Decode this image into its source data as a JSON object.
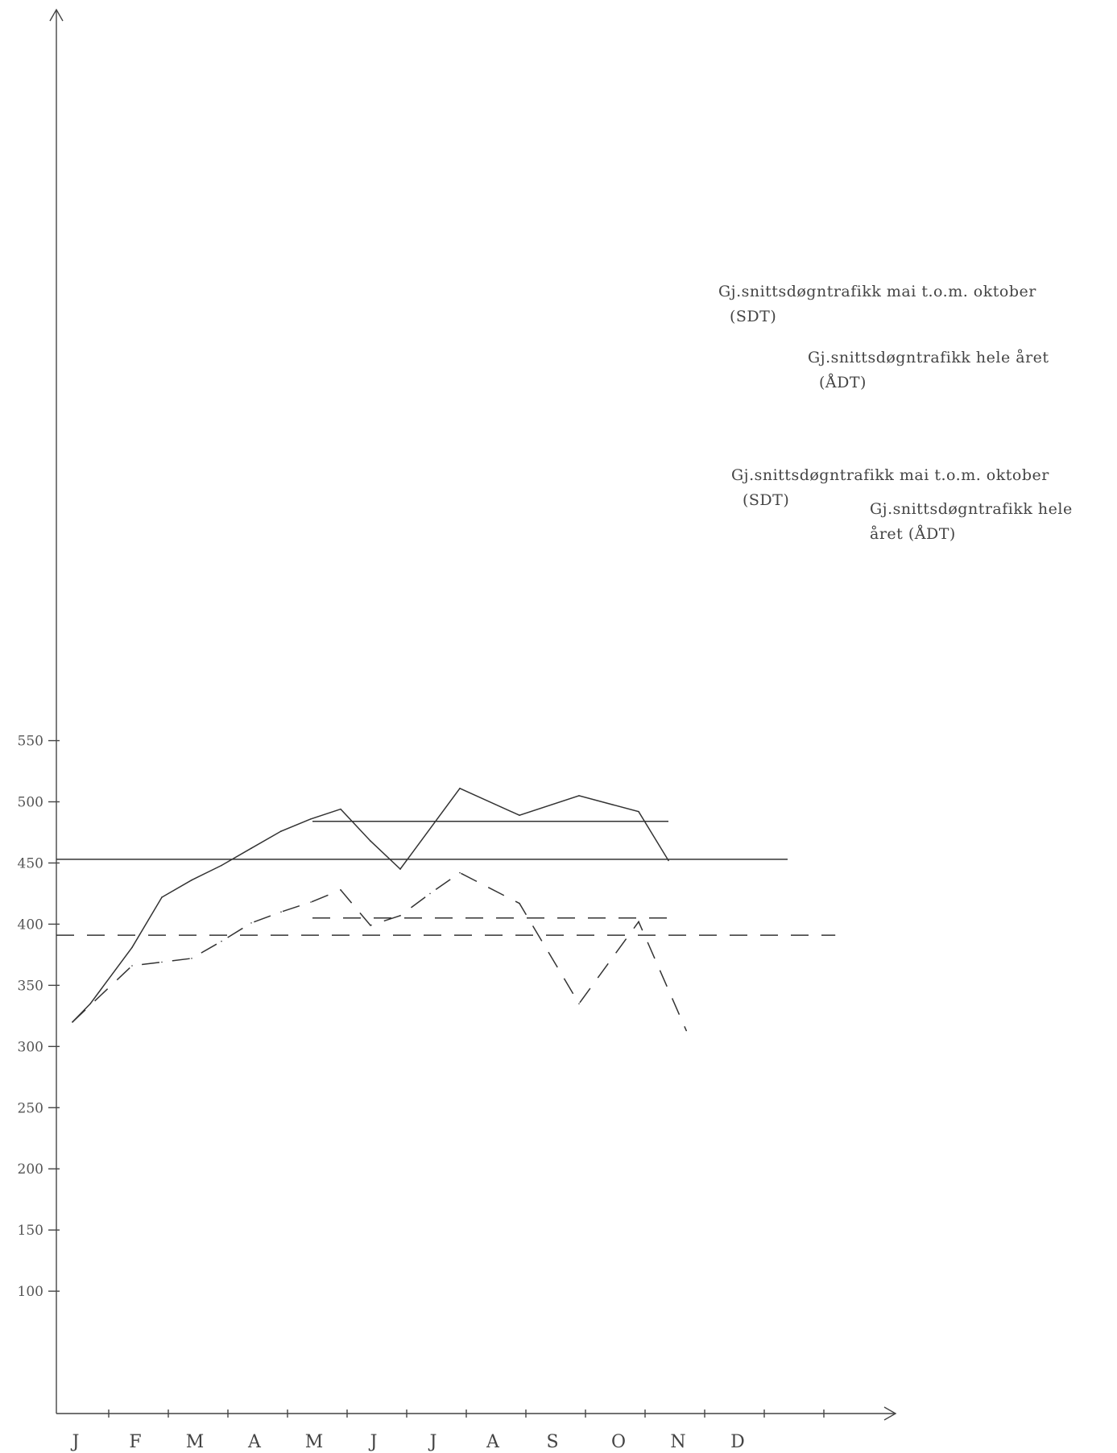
{
  "chart_data": {
    "type": "line",
    "categories": [
      "J",
      "F",
      "M",
      "A",
      "M",
      "J",
      "J",
      "A",
      "S",
      "O",
      "N",
      "D"
    ],
    "y_ticks": [
      "550",
      "500",
      "450",
      "400",
      "350",
      "300",
      "250",
      "200",
      "150",
      "100"
    ],
    "ylim": [
      0,
      600
    ],
    "grid": false,
    "series": [
      {
        "style": "solid",
        "points": [
          [
            0.0,
            320
          ],
          [
            0.3,
            335
          ],
          [
            1.0,
            381
          ],
          [
            1.5,
            422
          ],
          [
            2.0,
            436
          ],
          [
            2.5,
            448
          ],
          [
            3.0,
            462
          ],
          [
            3.5,
            476
          ],
          [
            4.0,
            486
          ],
          [
            4.5,
            494
          ],
          [
            5.0,
            468
          ],
          [
            5.5,
            445
          ],
          [
            6.5,
            511
          ],
          [
            7.5,
            489
          ],
          [
            8.5,
            505
          ],
          [
            9.5,
            492
          ],
          [
            10.0,
            452
          ]
        ]
      },
      {
        "style": "dashed",
        "points": [
          [
            0.0,
            320
          ],
          [
            1.0,
            366
          ],
          [
            1.5,
            369
          ],
          [
            2.0,
            372
          ],
          [
            2.5,
            386
          ],
          [
            3.0,
            401
          ],
          [
            3.5,
            410
          ],
          [
            4.0,
            418
          ],
          [
            4.5,
            428
          ],
          [
            5.0,
            399
          ],
          [
            5.5,
            407
          ],
          [
            6.0,
            425
          ],
          [
            6.5,
            442
          ],
          [
            7.5,
            417
          ],
          [
            8.5,
            335
          ],
          [
            9.5,
            402
          ],
          [
            10.3,
            313
          ]
        ]
      }
    ],
    "reference_lines": [
      {
        "style": "solid",
        "value": 484,
        "x_range": [
          4.0,
          10.0
        ],
        "label_lines": [
          "Gj.snittsdøgntrafikk mai t.o.m. oktober",
          "(SDT)"
        ]
      },
      {
        "style": "solid",
        "value": 453,
        "x_range": [
          0.0,
          12.0
        ],
        "label_lines": [
          "Gj.snittsdøgntrafikk hele året",
          "(ÅDT)"
        ]
      },
      {
        "style": "dashed",
        "value": 405,
        "x_range": [
          4.0,
          10.0
        ],
        "label_lines": [
          "Gj.snittsdøgntrafikk mai t.o.m. oktober",
          "(SDT)"
        ]
      },
      {
        "style": "dashed",
        "value": 391,
        "x_range": [
          0.0,
          12.8
        ],
        "label_lines": [
          "Gj.snittsdøgntrafikk hele",
          "året (ÅDT)"
        ]
      }
    ]
  }
}
